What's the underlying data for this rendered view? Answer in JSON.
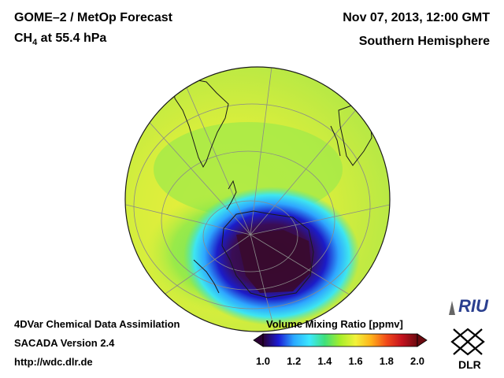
{
  "header": {
    "product": "GOME–2 / MetOp Forecast",
    "species": "CH",
    "species_sub": "4",
    "level": " at 55.4 hPa",
    "datetime": "Nov 07, 2013, 12:00 GMT",
    "region": "Southern Hemisphere"
  },
  "footer": {
    "line1": "4DVar Chemical Data Assimilation",
    "line2": "SACADA Version 2.4",
    "line3": "http://wdc.dlr.de"
  },
  "colorbar": {
    "title": "Volume Mixing Ratio [ppmv]",
    "ticks": [
      "1.0",
      "1.2",
      "1.4",
      "1.6",
      "1.8",
      "2.0"
    ],
    "min": 1.0,
    "max": 2.0,
    "colors": [
      "#2a0033",
      "#1b1bd6",
      "#2aa9ff",
      "#3ce8ff",
      "#3fe07a",
      "#a6ee2a",
      "#f2f23a",
      "#ffb21a",
      "#f24a1a",
      "#c4121e",
      "#6b0a10"
    ]
  },
  "logos": {
    "riu": "RIU",
    "dlr": "DLR"
  },
  "map": {
    "background_value_ppmv": 1.62,
    "vortex_min_ppmv": 1.0
  }
}
